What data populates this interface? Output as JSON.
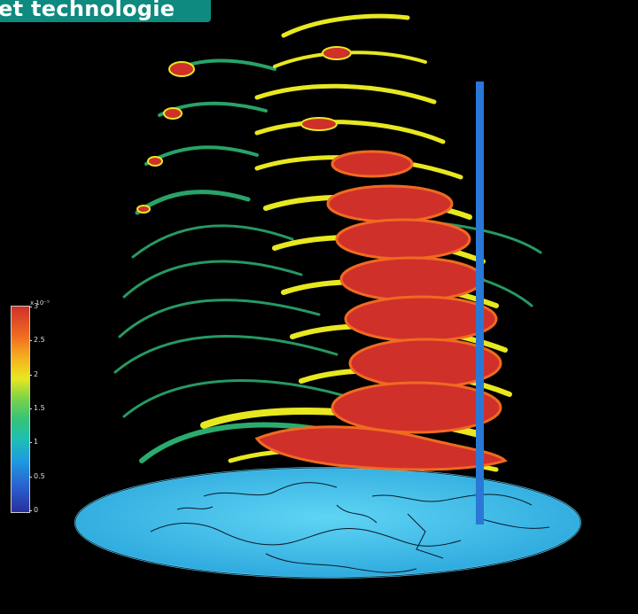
{
  "banner": {
    "text": "et technologie"
  },
  "colorbar": {
    "exponent": "x 10⁻⁵",
    "ticks": [
      "3",
      "2.5",
      "2",
      "1.5",
      "1",
      "0.5",
      "0"
    ],
    "colors": [
      "#2a2f9c",
      "#1e9be0",
      "#33c37a",
      "#e8e820",
      "#f06a20",
      "#d0302a"
    ]
  },
  "visual": {
    "earth_disc_color": "#3cc0ee",
    "pole_color": "#2a78d6",
    "plume_colors": [
      "#d0302a",
      "#f06a20",
      "#e8e820",
      "#33c37a"
    ]
  }
}
